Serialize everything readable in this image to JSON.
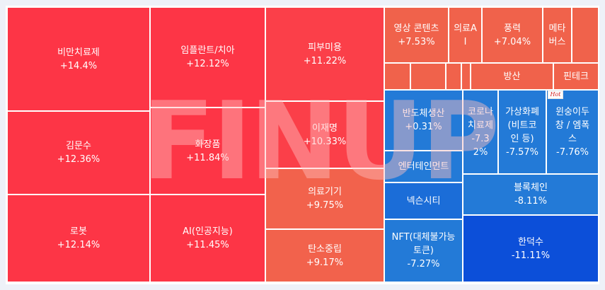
{
  "tiles": {
    "biman": {
      "name": "비만치료제",
      "change": "+14.4%"
    },
    "kimsu": {
      "name": "김문수",
      "change": "+12.36%"
    },
    "robot": {
      "name": "로봇",
      "change": "+12.14%"
    },
    "implant": {
      "name": "임플란트/치아",
      "change": "+12.12%"
    },
    "cosmetic": {
      "name": "화장품",
      "change": "+11.84%"
    },
    "ai": {
      "name": "AI(인공지능)",
      "change": "+11.45%"
    },
    "skin": {
      "name": "피부미용",
      "change": "+11.22%"
    },
    "ljm": {
      "name": "이재명",
      "change": "+10.33%"
    },
    "medical": {
      "name": "의료기기",
      "change": "+9.75%"
    },
    "carbon": {
      "name": "탄소중립",
      "change": "+9.17%"
    },
    "video": {
      "name": "영상 콘텐츠",
      "change": "+7.53%"
    },
    "medai": {
      "name": "의료A\nI"
    },
    "wind": {
      "name": "풍력",
      "change": "+7.04%"
    },
    "meta": {
      "name": "메타\n버스"
    },
    "defense": {
      "name": "방산"
    },
    "fintech": {
      "name": "핀테크"
    },
    "semi": {
      "name": "반도체생산",
      "change": "+0.31%"
    },
    "ent": {
      "name": "엔터테인먼트"
    },
    "nexon": {
      "name": "넥슨시티"
    },
    "nft": {
      "name": "NFT(대체불가능\n토큰)",
      "change": "-7.27%"
    },
    "corona": {
      "name": "코로나\n치료제",
      "change": "-7.3\n2%"
    },
    "crypto": {
      "name": "가상화폐\n(비트코\n인 등)",
      "change": "-7.57%"
    },
    "wonsoon": {
      "name": "윈숭이두\n창 / 엠폭\n스",
      "change": "-7.76%"
    },
    "blockchain": {
      "name": "블록체인",
      "change": "-8.11%"
    },
    "handuk": {
      "name": "한덕수",
      "change": "-11.11%"
    }
  },
  "watermark": "FINUP",
  "hot_badge": "Hot",
  "colors": {
    "up_strong": "#fd3546",
    "up_mid": "#f2624c",
    "down": "#237ad7",
    "down_strong": "#0c4fd9",
    "background": "#eef1f8"
  }
}
